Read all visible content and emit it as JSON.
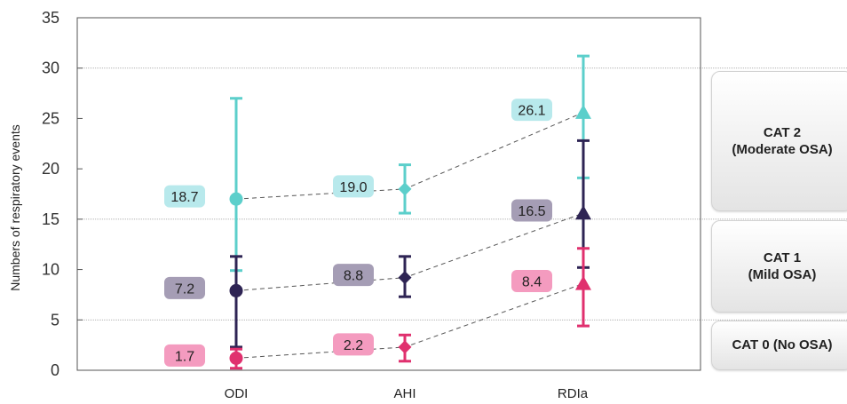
{
  "chart_data": {
    "type": "scatter",
    "ylabel": "Numbers of respiratory events",
    "ylim": [
      0,
      35
    ],
    "yticks": [
      0,
      5,
      10,
      15,
      20,
      25,
      30,
      35
    ],
    "gridlines": [
      5,
      15,
      30
    ],
    "categories": [
      "ODI",
      "AHI",
      "RDIa"
    ],
    "series": [
      {
        "color": "#5CCFCB",
        "label_bg": "#B8E9EC",
        "marker": "circle,diamond,triangle",
        "means": [
          17.0,
          18.0,
          25.6
        ],
        "labels": [
          "18.7",
          "19.0",
          "26.1"
        ],
        "err_low": [
          9.9,
          15.6,
          19.1
        ],
        "err_high": [
          27.0,
          20.4,
          31.2
        ]
      },
      {
        "color": "#2E2454",
        "label_bg": "#A59DB5",
        "marker": "circle,diamond,triangle",
        "means": [
          7.9,
          9.2,
          15.6
        ],
        "labels": [
          "7.2",
          "8.8",
          "16.5"
        ],
        "err_low": [
          2.3,
          7.3,
          10.2
        ],
        "err_high": [
          11.3,
          11.3,
          22.8
        ]
      },
      {
        "color": "#E0306E",
        "label_bg": "#F49BBF",
        "marker": "circle,diamond,triangle",
        "means": [
          1.2,
          2.3,
          8.6
        ],
        "labels": [
          "1.7",
          "2.2",
          "8.4"
        ],
        "err_low": [
          0.2,
          0.9,
          4.4
        ],
        "err_high": [
          2.1,
          3.5,
          12.1
        ]
      }
    ]
  },
  "categories_panel": [
    {
      "label": "CAT 2\n(Moderate OSA)"
    },
    {
      "label": "CAT 1\n(Mild OSA)"
    },
    {
      "label": "CAT 0 (No OSA)"
    }
  ]
}
